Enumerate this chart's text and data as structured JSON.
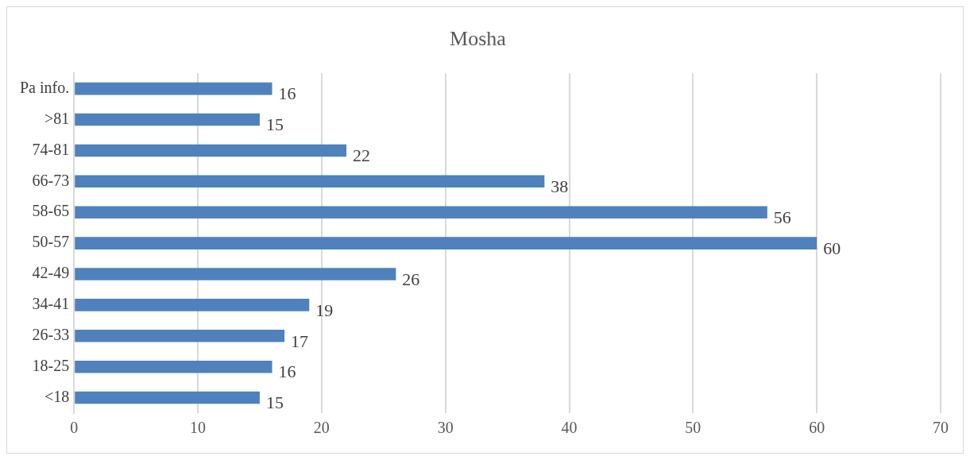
{
  "chart_data": {
    "type": "bar",
    "orientation": "horizontal",
    "title": "Mosha",
    "categories": [
      "Pa info.",
      ">81",
      "74-81",
      "66-73",
      "58-65",
      "50-57",
      "42-49",
      "34-41",
      "26-33",
      "18-25",
      "<18"
    ],
    "values": [
      16,
      15,
      22,
      38,
      56,
      60,
      26,
      19,
      17,
      16,
      15
    ],
    "color": "#4f81bd",
    "xlim": [
      0,
      70
    ],
    "xticks": [
      0,
      10,
      20,
      30,
      40,
      50,
      60,
      70
    ],
    "grid": "x",
    "legend": false,
    "data_labels": true
  }
}
